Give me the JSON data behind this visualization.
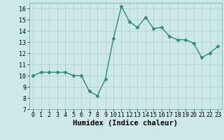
{
  "x": [
    0,
    1,
    2,
    3,
    4,
    5,
    6,
    7,
    8,
    9,
    10,
    11,
    12,
    13,
    14,
    15,
    16,
    17,
    18,
    19,
    20,
    21,
    22,
    23
  ],
  "y": [
    10.0,
    10.3,
    10.3,
    10.3,
    10.3,
    10.0,
    10.0,
    8.6,
    8.2,
    9.7,
    13.3,
    16.2,
    14.8,
    14.3,
    15.2,
    14.2,
    14.3,
    13.5,
    13.2,
    13.2,
    12.9,
    11.6,
    12.0,
    12.6
  ],
  "line_color": "#2e8b74",
  "marker": "D",
  "markersize": 2.5,
  "linewidth": 1.0,
  "bg_color": "#cce8e8",
  "grid_color": "#b0cece",
  "xlabel": "Humidex (Indice chaleur)",
  "xlabel_fontsize": 7.5,
  "tick_fontsize": 6,
  "xlim": [
    -0.5,
    23.5
  ],
  "ylim": [
    7,
    16.5
  ],
  "yticks": [
    7,
    8,
    9,
    10,
    11,
    12,
    13,
    14,
    15,
    16
  ],
  "xticks": [
    0,
    1,
    2,
    3,
    4,
    5,
    6,
    7,
    8,
    9,
    10,
    11,
    12,
    13,
    14,
    15,
    16,
    17,
    18,
    19,
    20,
    21,
    22,
    23
  ]
}
